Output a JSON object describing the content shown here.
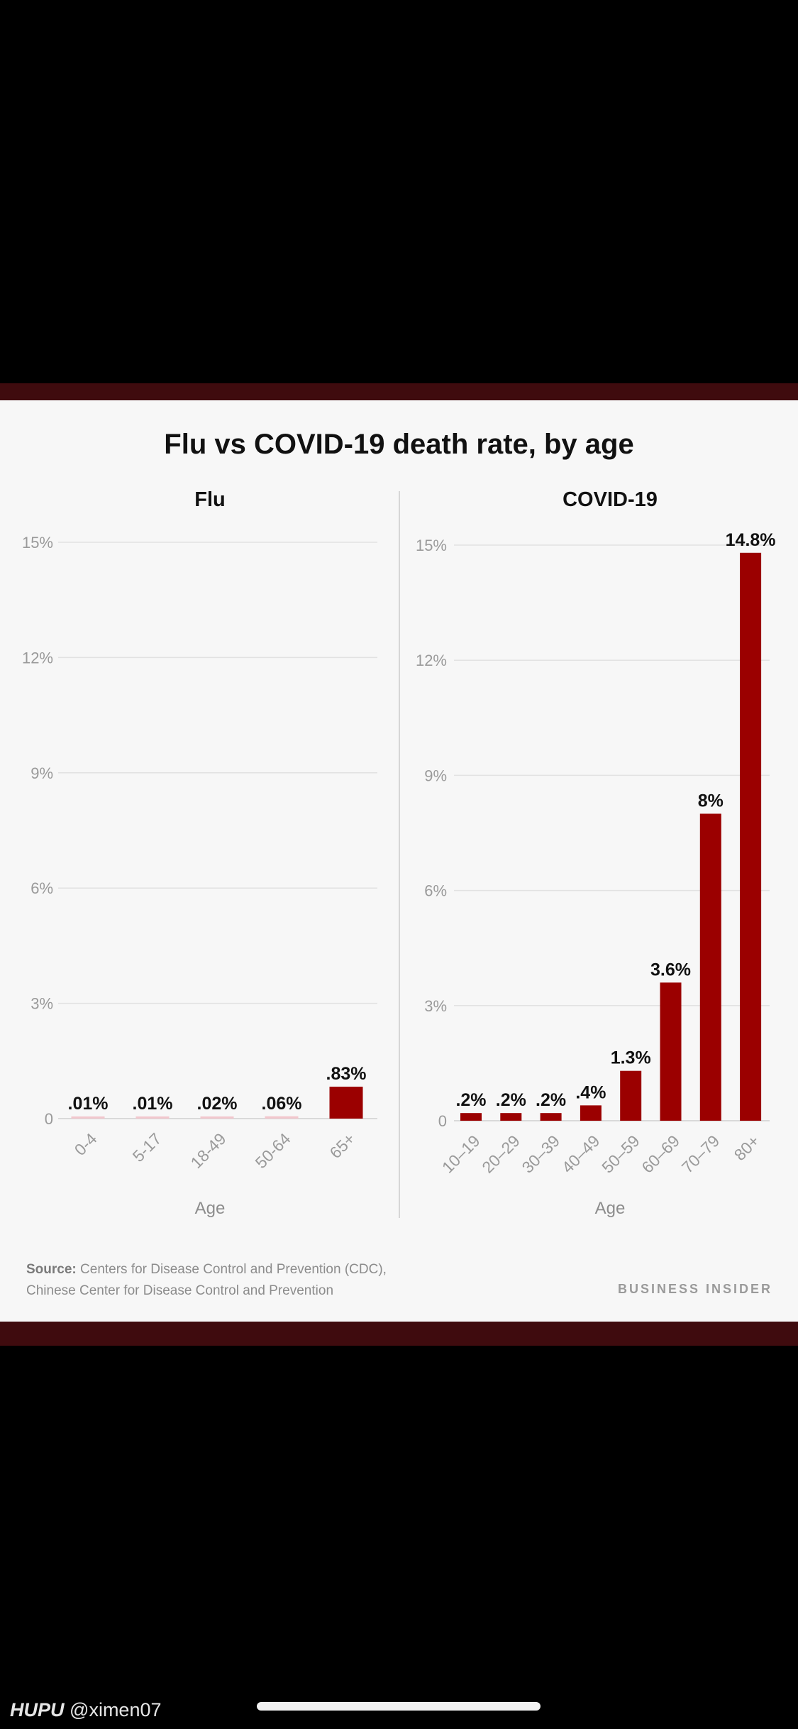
{
  "chart_data": [
    {
      "type": "bar",
      "title": "Flu",
      "categories": [
        "0-4",
        "5-17",
        "18-49",
        "50-64",
        "65+"
      ],
      "values": [
        0.01,
        0.01,
        0.02,
        0.06,
        0.83
      ],
      "value_labels": [
        ".01%",
        ".01%",
        ".02%",
        ".06%",
        ".83%"
      ],
      "xlabel": "Age",
      "ylabel": "",
      "ylim": [
        0,
        15
      ],
      "yticks": [
        0,
        3,
        6,
        9,
        12,
        15
      ],
      "ytick_labels": [
        "0",
        "3%",
        "6%",
        "9%",
        "12%",
        "15%"
      ],
      "grid": true,
      "colors": [
        "#f2c7cd",
        "#f2c7cd",
        "#f2c7cd",
        "#f2c7cd",
        "#9b0000"
      ]
    },
    {
      "type": "bar",
      "title": "COVID-19",
      "categories": [
        "10–19",
        "20–29",
        "30–39",
        "40–49",
        "50–59",
        "60–69",
        "70–79",
        "80+"
      ],
      "values": [
        0.2,
        0.2,
        0.2,
        0.4,
        1.3,
        3.6,
        8,
        14.8
      ],
      "value_labels": [
        ".2%",
        ".2%",
        ".2%",
        ".4%",
        "1.3%",
        "3.6%",
        "8%",
        "14.8%"
      ],
      "xlabel": "Age",
      "ylabel": "",
      "ylim": [
        0,
        15
      ],
      "yticks": [
        0,
        3,
        6,
        9,
        12,
        15
      ],
      "ytick_labels": [
        "0",
        "3%",
        "6%",
        "9%",
        "12%",
        "15%"
      ],
      "grid": true,
      "colors": [
        "#9b0000"
      ]
    }
  ],
  "page": {
    "title": "Flu vs COVID-19 death rate, by age",
    "source_label": "Source:",
    "source_line1": "Centers for Disease Control and Prevention (CDC),",
    "source_line2": "Chinese Center for Disease Control and Prevention",
    "brand": "BUSINESS INSIDER",
    "watermark_brand": "HUPU",
    "watermark_user": "@ximen07"
  },
  "colors": {
    "bar": "#9b0000",
    "bar_light": "#f2c7cd",
    "grid": "#e2e2e2",
    "band": "#3f0b0e"
  }
}
